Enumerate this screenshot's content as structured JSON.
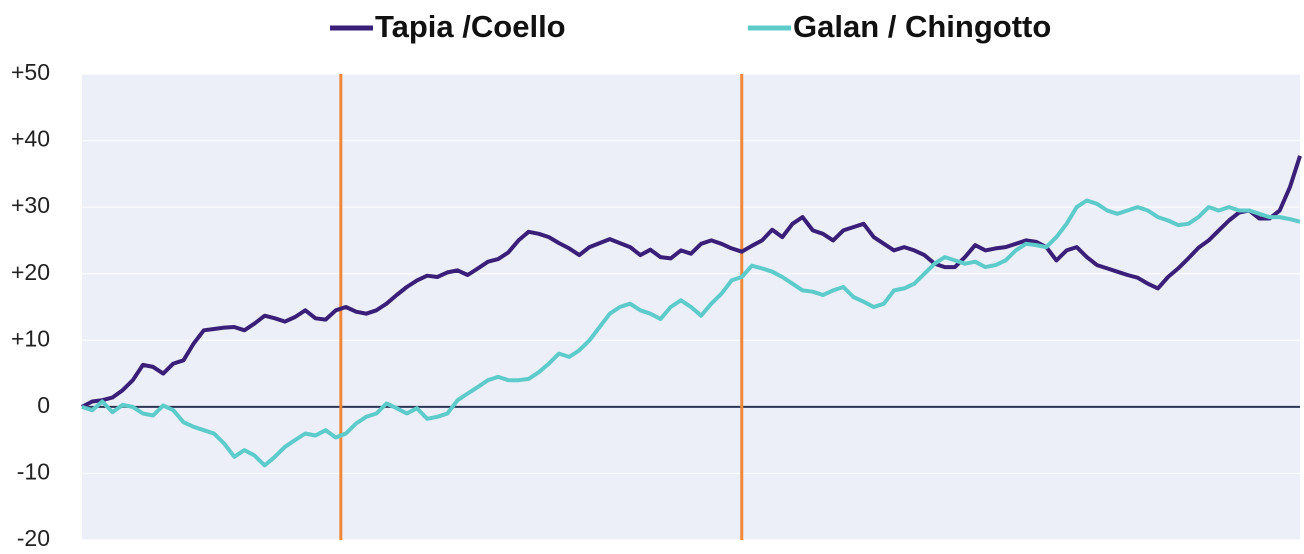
{
  "chart_data": {
    "type": "line",
    "x": [
      0,
      1,
      2,
      3,
      4,
      5,
      6,
      7,
      8,
      9,
      10,
      11,
      12,
      13,
      14,
      15,
      16,
      17,
      18,
      19,
      20,
      21,
      22,
      23,
      24,
      25,
      26,
      27,
      28,
      29,
      30,
      31,
      32,
      33,
      34,
      35,
      36,
      37,
      38,
      39,
      40,
      41,
      42,
      43,
      44,
      45,
      46,
      47,
      48,
      49,
      50,
      51,
      52,
      53,
      54,
      55,
      56,
      57,
      58,
      59,
      60,
      61,
      62,
      63,
      64,
      65,
      66,
      67,
      68,
      69,
      70,
      71,
      72,
      73,
      74,
      75,
      76,
      77,
      78,
      79,
      80,
      81,
      82,
      83,
      84,
      85,
      86,
      87,
      88,
      89,
      90,
      91,
      92,
      93,
      94,
      95,
      96,
      97,
      98,
      99,
      100,
      101,
      102,
      103,
      104,
      105,
      106,
      107,
      108,
      109,
      110,
      111,
      112,
      113,
      114,
      115,
      116,
      117,
      118,
      119,
      120
    ],
    "xlim": [
      0,
      120
    ],
    "series": [
      {
        "name": "Tapia /Coello",
        "color": "#3a1f78",
        "values": [
          0,
          0.8,
          1,
          1.4,
          2.5,
          4,
          6.3,
          6,
          5,
          6.5,
          7,
          9.5,
          11.5,
          11.7,
          11.9,
          12,
          11.5,
          12.5,
          13.7,
          13.3,
          12.8,
          13.5,
          14.5,
          13.3,
          13.1,
          14.5,
          15,
          14.3,
          14,
          14.5,
          15.5,
          16.8,
          18,
          19,
          19.7,
          19.5,
          20.2,
          20.5,
          19.8,
          20.8,
          21.8,
          22.2,
          23.2,
          25,
          26.3,
          26,
          25.5,
          24.6,
          23.8,
          22.8,
          24,
          24.6,
          25.2,
          24.6,
          24,
          22.8,
          23.6,
          22.5,
          22.3,
          23.5,
          23,
          24.5,
          25,
          24.5,
          23.8,
          23.3,
          24.2,
          25,
          26.6,
          25.5,
          27.5,
          28.5,
          26.5,
          26,
          25,
          26.5,
          27,
          27.5,
          25.5,
          24.5,
          23.5,
          24,
          23.5,
          22.8,
          21.5,
          21,
          21,
          22.5,
          24.3,
          23.5,
          23.8,
          24,
          24.5,
          25,
          24.8,
          24,
          22,
          23.5,
          24,
          22.5,
          21.3,
          20.8,
          20.3,
          19.8,
          19.4,
          18.5,
          17.8,
          19.5,
          20.8,
          22.3,
          23.9,
          25,
          26.5,
          28,
          29.2,
          29.5,
          28.3,
          28.3,
          29.5,
          33,
          37.7
        ]
      },
      {
        "name": "Galan / Chingotto",
        "color": "#5ecbcb",
        "values": [
          0,
          -0.5,
          0.8,
          -0.8,
          0.3,
          0,
          -1,
          -1.3,
          0.2,
          -0.5,
          -2.3,
          -3,
          -3.5,
          -4,
          -5.5,
          -7.5,
          -6.5,
          -7.3,
          -8.8,
          -7.5,
          -6,
          -5,
          -4,
          -4.3,
          -3.5,
          -4.6,
          -4,
          -2.5,
          -1.5,
          -1,
          0.5,
          -0.2,
          -1,
          -0.2,
          -1.8,
          -1.5,
          -1,
          1,
          2,
          3,
          4,
          4.5,
          4,
          4,
          4.2,
          5.2,
          6.5,
          8,
          7.5,
          8.5,
          10,
          12,
          14,
          15,
          15.5,
          14.5,
          14,
          13.2,
          15,
          16,
          15,
          13.7,
          15.5,
          17,
          19,
          19.5,
          21.2,
          20.8,
          20.3,
          19.5,
          18.5,
          17.5,
          17.3,
          16.8,
          17.5,
          18,
          16.5,
          15.8,
          15,
          15.5,
          17.5,
          17.8,
          18.5,
          20,
          21.5,
          22.5,
          22,
          21.5,
          21.8,
          21,
          21.3,
          22,
          23.5,
          24.5,
          24.3,
          24,
          25.5,
          27.5,
          30,
          31,
          30.5,
          29.5,
          29,
          29.5,
          30,
          29.5,
          28.5,
          28,
          27.3,
          27.5,
          28.5,
          30,
          29.5,
          30,
          29.5,
          29.5,
          29,
          28.5,
          28.5,
          28.2,
          27.8
        ]
      }
    ],
    "ylim": [
      -20,
      50
    ],
    "yticks": [
      {
        "value": 50,
        "label": "+50"
      },
      {
        "value": 40,
        "label": "+40"
      },
      {
        "value": 30,
        "label": "+30"
      },
      {
        "value": 20,
        "label": "+20"
      },
      {
        "value": 10,
        "label": "+10"
      },
      0,
      -10,
      -20
    ],
    "vlines": [
      25.5,
      65
    ],
    "vline_color": "#f0883a",
    "grid": true,
    "legend": "top"
  }
}
